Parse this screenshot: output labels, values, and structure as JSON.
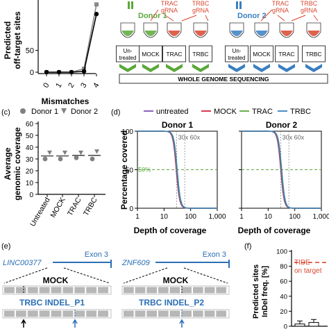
{
  "panel_a": {
    "ylabel_line1": "Predicted",
    "ylabel_line2": "off-target sites",
    "xlabel": "Mismatches",
    "chart_data": {
      "type": "line",
      "x": [
        0,
        1,
        2,
        3,
        4
      ],
      "xticks": [
        "0",
        "1",
        "2",
        "3",
        "4"
      ],
      "yticks": [
        "0",
        "50"
      ],
      "ylim": [
        0,
        160
      ],
      "series": [
        {
          "values": [
            0,
            0,
            0,
            8,
            155
          ],
          "color": "#888888",
          "marker": "square"
        },
        {
          "values": [
            0,
            0,
            0,
            2,
            133
          ],
          "color": "#000000",
          "marker": "circle"
        }
      ]
    }
  },
  "panel_b": {
    "donor1": "Donor 1",
    "donor2": "Donor 2",
    "trac_grna": [
      "TRAC",
      "gRNA"
    ],
    "trbc_grna": [
      "TRBC",
      "gRNA"
    ],
    "boxes": [
      "Un-|treated",
      "MOCK",
      "TRAC",
      "TRBC"
    ],
    "wgs_label": "WHOLE GENOME SEQUENCING",
    "colors": {
      "donor1": "#5aa83a",
      "donor2": "#3a7fc1",
      "grna": "#d9472f"
    }
  },
  "panel_c": {
    "label": "(c)",
    "legend": [
      "Donor 1",
      "Donor 2"
    ],
    "ylabel_line1": "Average",
    "ylabel_line2": "genomic coverage",
    "chart_data": {
      "type": "scatter",
      "categories": [
        "Untreated",
        "MOCK",
        "TRAC",
        "TRBC"
      ],
      "yticks": [
        "0",
        "10",
        "20",
        "30",
        "40",
        "50",
        "60"
      ],
      "ylim": [
        0,
        60
      ],
      "donor1": [
        30,
        30,
        31,
        30
      ],
      "donor2": [
        35,
        35,
        35,
        36
      ],
      "mean": [
        32.5,
        32.5,
        33,
        33
      ]
    }
  },
  "panel_d": {
    "label": "(d)",
    "legend": [
      {
        "name": "untreated",
        "color": "#7a4fb3"
      },
      {
        "name": "MOCK",
        "color": "#d81f3a"
      },
      {
        "name": "TRAC",
        "color": "#5aa83a"
      },
      {
        "name": "TRBC",
        "color": "#3a7fc1"
      }
    ],
    "ylabel": "Percentage covered",
    "xlabel": "Depth of coverage",
    "titles": [
      "Donor 1",
      "Donor 2"
    ],
    "fifty_label": "50%",
    "ref_label": "30x 60x",
    "chart_data": {
      "type": "line",
      "x_scale": "log",
      "xlim": [
        1,
        1000
      ],
      "ylim": [
        0,
        100
      ],
      "xticks": [
        "1",
        "10",
        "100",
        "1,000"
      ],
      "yticks": [
        "0",
        "50",
        "100"
      ],
      "midpoint_depth": [
        30,
        31
      ],
      "reference_lines": [
        30,
        60,
        50
      ]
    }
  },
  "panel_e": {
    "label": "(e)",
    "left": {
      "gene": "LINC00377",
      "exon": "Exon 3",
      "zoom": "MOCK",
      "track": "TRBC INDEL_P1"
    },
    "right": {
      "gene": "ZNF609",
      "exon": "Exon 3",
      "zoom": "MOCK",
      "track": "TRBC INDEL_P2"
    }
  },
  "panel_f": {
    "label": "(f)",
    "ylabel_line1": "Predicted sites",
    "ylabel_line2": "InDel freq. [%]",
    "tide_label": "TIDE",
    "on_target": "on target",
    "chart_data": {
      "type": "bar",
      "ylim": [
        0,
        100
      ],
      "yticks": [
        "0",
        "20",
        "40",
        "60",
        "80",
        "100"
      ],
      "tide_value": 85
    }
  }
}
